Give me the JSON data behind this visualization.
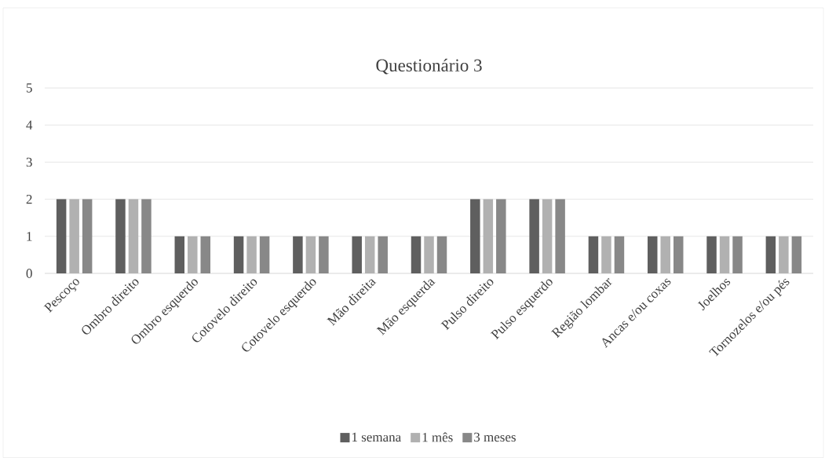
{
  "chart_data": {
    "type": "bar",
    "title": "Questionário 3",
    "categories": [
      "Pescoço",
      "Ombro direito",
      "Ombro esquerdo",
      "Cotovelo direito",
      "Cotovelo esquerdo",
      "Mão direita",
      "Mão esquerda",
      "Pulso direito",
      "Pulso esquerdo",
      "Região lombar",
      "Ancas e/ou coxas",
      "Joelhos",
      "Tornozelos e/ou pés"
    ],
    "series": [
      {
        "name": "1 semana",
        "color": "#5f5f5f",
        "values": [
          2,
          2,
          1,
          1,
          1,
          1,
          1,
          2,
          2,
          1,
          1,
          1,
          1
        ]
      },
      {
        "name": "1 mês",
        "color": "#b1b1b1",
        "values": [
          2,
          2,
          1,
          1,
          1,
          1,
          1,
          2,
          2,
          1,
          1,
          1,
          1
        ]
      },
      {
        "name": "3 meses",
        "color": "#888888",
        "values": [
          2,
          2,
          1,
          1,
          1,
          1,
          1,
          2,
          2,
          1,
          1,
          1,
          1
        ]
      }
    ],
    "ylim": [
      0,
      5
    ],
    "yticks": [
      0,
      1,
      2,
      3,
      4,
      5
    ],
    "grid": "y",
    "legend": "bottom"
  }
}
